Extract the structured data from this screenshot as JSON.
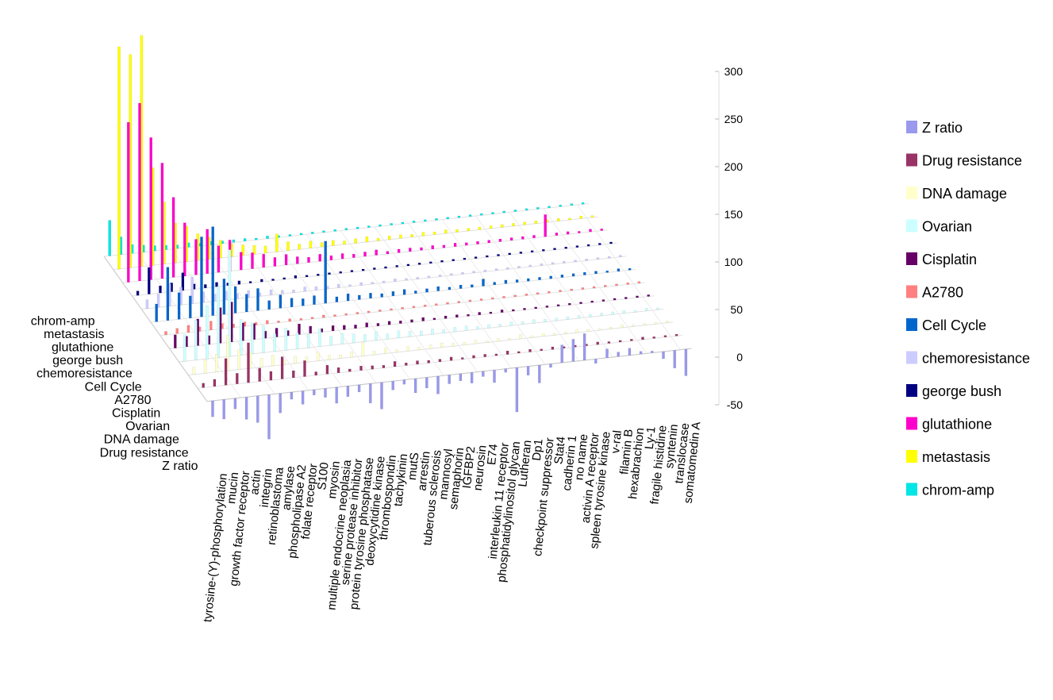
{
  "chart_data": {
    "type": "bar",
    "variant": "3d-bar",
    "title": "",
    "xlabel": "",
    "ylabel": "",
    "zlim": [
      -50,
      300
    ],
    "z_ticks": [
      "300",
      "250",
      "200",
      "150",
      "100",
      "50",
      "0",
      "-50"
    ],
    "z_tick_values": [
      300,
      250,
      200,
      150,
      100,
      50,
      0,
      -50
    ],
    "grid": true,
    "legend_position": "right",
    "categories": [
      "tyrosine-(Y)-phosphorylation",
      "mucin",
      "growth factor receptor",
      "actin",
      "integrin",
      "retinoblastoma",
      "amylase",
      "phospholipase A2",
      "folate receptor",
      "S100",
      "myosin",
      "multiple endocrine neoplasia",
      "serine protease inhibitor",
      "protein tyrosine phosphatase",
      "deoxycytidine kinase",
      "thrombospondin",
      "tachykinin",
      "mutS",
      "arrestin",
      "tuberous sclerosis",
      "mannosyl",
      "semaphorin",
      "IGFBP2",
      "neurosin",
      "E74",
      "interleukin 11 receptor",
      "phosphatidylinositol glycan",
      "Lutheran",
      "Dp1",
      "checkpoint suppressor",
      "Stat4",
      "cadherin 1",
      "no name",
      "activin A receptor",
      "spleen tyrosine kinase",
      "v-ral",
      "filamin B",
      "hexabrachion",
      "Ly-1",
      "fragile histidine",
      "syntenin",
      "translocase",
      "somatomedin A"
    ],
    "series": [
      {
        "name": "Z ratio",
        "color": "#9999ee",
        "values": [
          -18,
          -22,
          -12,
          -25,
          -30,
          -50,
          -22,
          -8,
          -15,
          -6,
          -10,
          -18,
          -12,
          -8,
          -22,
          -30,
          -10,
          -5,
          -16,
          -12,
          -20,
          -10,
          -8,
          -12,
          -6,
          -14,
          -4,
          -50,
          -10,
          -20,
          -4,
          20,
          25,
          30,
          -5,
          10,
          5,
          8,
          3,
          2,
          -8,
          -20,
          -30
        ]
      },
      {
        "name": "Drug resistance",
        "color": "#993366",
        "values": [
          5,
          8,
          30,
          12,
          45,
          15,
          10,
          25,
          8,
          18,
          4,
          10,
          6,
          3,
          5,
          4,
          3,
          6,
          3,
          4,
          3,
          3,
          4,
          2,
          3,
          3,
          2,
          4,
          2,
          3,
          2,
          3,
          2,
          2,
          2,
          3,
          2,
          2,
          2,
          3,
          2,
          2,
          2
        ]
      },
      {
        "name": "DNA damage",
        "color": "#ffffcc",
        "values": [
          8,
          15,
          20,
          40,
          22,
          18,
          10,
          12,
          5,
          8,
          6,
          10,
          5,
          4,
          6,
          15,
          4,
          6,
          3,
          5,
          3,
          4,
          5,
          3,
          3,
          4,
          2,
          3,
          2,
          5,
          2,
          3,
          2,
          2,
          3,
          2,
          2,
          2,
          3,
          2,
          2,
          2,
          2
        ]
      },
      {
        "name": "Ovarian",
        "color": "#ccffff",
        "values": [
          30,
          45,
          60,
          80,
          120,
          40,
          35,
          30,
          20,
          25,
          18,
          15,
          20,
          10,
          12,
          10,
          8,
          10,
          6,
          8,
          6,
          5,
          6,
          4,
          5,
          5,
          3,
          4,
          3,
          4,
          3,
          4,
          3,
          3,
          3,
          3,
          3,
          3,
          3,
          3,
          2,
          3,
          2
        ]
      },
      {
        "name": "Cisplatin",
        "color": "#660066",
        "values": [
          15,
          12,
          30,
          10,
          40,
          45,
          20,
          18,
          8,
          10,
          6,
          12,
          8,
          4,
          6,
          5,
          4,
          5,
          3,
          4,
          3,
          3,
          4,
          2,
          3,
          3,
          2,
          3,
          2,
          3,
          2,
          2,
          2,
          2,
          2,
          2,
          2,
          2,
          2,
          2,
          2,
          2,
          2
        ]
      },
      {
        "name": "A2780",
        "color": "#ff8080",
        "values": [
          4,
          6,
          8,
          5,
          10,
          6,
          4,
          5,
          3,
          4,
          2,
          3,
          2,
          2,
          3,
          2,
          2,
          2,
          2,
          2,
          2,
          2,
          2,
          2,
          2,
          2,
          2,
          2,
          2,
          2,
          2,
          2,
          2,
          2,
          2,
          2,
          2,
          2,
          2,
          2,
          2,
          2,
          2
        ]
      },
      {
        "name": "Cell Cycle",
        "color": "#0066cc",
        "values": [
          20,
          60,
          30,
          25,
          90,
          100,
          40,
          30,
          20,
          25,
          10,
          15,
          10,
          8,
          10,
          70,
          6,
          8,
          5,
          6,
          4,
          5,
          6,
          3,
          4,
          5,
          3,
          4,
          3,
          8,
          3,
          4,
          3,
          3,
          3,
          3,
          3,
          3,
          3,
          3,
          2,
          3,
          2
        ]
      },
      {
        "name": "chemoresistance",
        "color": "#ccccff",
        "values": [
          10,
          15,
          25,
          20,
          30,
          12,
          8,
          10,
          6,
          8,
          4,
          6,
          4,
          3,
          5,
          4,
          3,
          4,
          2,
          3,
          2,
          2,
          3,
          2,
          2,
          2,
          2,
          2,
          2,
          2,
          2,
          2,
          2,
          2,
          2,
          2,
          2,
          2,
          2,
          2,
          2,
          2,
          2
        ]
      },
      {
        "name": "george bush",
        "color": "#000080",
        "values": [
          5,
          30,
          8,
          10,
          20,
          6,
          4,
          5,
          3,
          4,
          2,
          3,
          2,
          2,
          3,
          2,
          2,
          2,
          2,
          2,
          2,
          2,
          2,
          2,
          2,
          2,
          2,
          2,
          2,
          2,
          2,
          2,
          2,
          2,
          2,
          2,
          2,
          2,
          2,
          2,
          2,
          2,
          2
        ]
      },
      {
        "name": "glutathione",
        "color": "#ff00cc",
        "values": [
          180,
          200,
          160,
          130,
          90,
          60,
          40,
          50,
          30,
          35,
          20,
          18,
          15,
          10,
          12,
          8,
          6,
          8,
          5,
          6,
          4,
          5,
          6,
          3,
          4,
          4,
          3,
          4,
          3,
          4,
          3,
          3,
          3,
          3,
          3,
          3,
          3,
          25,
          3,
          3,
          2,
          3,
          2
        ]
      },
      {
        "name": "metastasis",
        "color": "#ffff00",
        "values": [
          250,
          240,
          260,
          110,
          70,
          45,
          40,
          30,
          25,
          20,
          15,
          12,
          10,
          8,
          20,
          10,
          6,
          8,
          5,
          6,
          4,
          5,
          6,
          3,
          4,
          4,
          3,
          4,
          3,
          4,
          3,
          3,
          3,
          3,
          3,
          3,
          3,
          3,
          3,
          3,
          2,
          3,
          2
        ]
      },
      {
        "name": "chrom-amp",
        "color": "#00e5e5",
        "values": [
          40,
          20,
          10,
          8,
          6,
          5,
          4,
          5,
          3,
          4,
          3,
          3,
          3,
          2,
          3,
          2,
          2,
          2,
          2,
          2,
          2,
          2,
          2,
          2,
          2,
          2,
          2,
          2,
          2,
          2,
          2,
          2,
          2,
          2,
          2,
          2,
          2,
          2,
          2,
          2,
          2,
          2,
          2
        ]
      }
    ]
  }
}
